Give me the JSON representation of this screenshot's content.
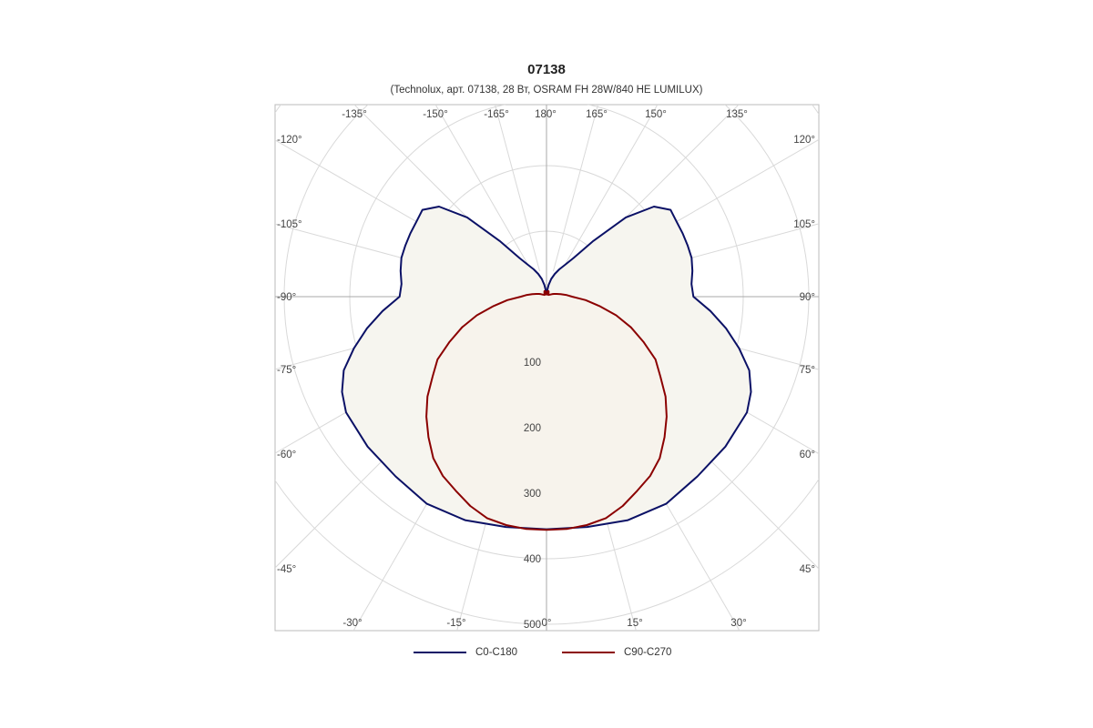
{
  "chart_data": {
    "type": "polar-line",
    "title": "07138",
    "subtitle": "(Technolux, арт. 07138, 28 Вт, OSRAM FH 28W/840 HE LUMILUX)",
    "radial_axis": {
      "ticks": [
        100,
        200,
        300,
        400,
        500
      ],
      "max": 500
    },
    "angle_labels": {
      "top": [
        "-135°",
        "-150°",
        "-165°",
        "180°",
        "165°",
        "150°",
        "135°"
      ],
      "left": [
        "-120°",
        "-105°",
        "-90°",
        "-75°",
        "-60°",
        "-45°"
      ],
      "right": [
        "120°",
        "105°",
        "90°",
        "75°",
        "60°",
        "45°"
      ],
      "bottom": [
        "-30°",
        "-15°",
        "0°",
        "15°",
        "30°"
      ]
    },
    "grid": true,
    "legend_position": "bottom",
    "series": [
      {
        "name": "C0-C180",
        "color": "#0b1166",
        "angles": [
          0,
          10,
          20,
          30,
          40,
          50,
          60,
          65,
          70,
          75,
          80,
          85,
          90,
          95,
          100,
          105,
          110,
          115,
          120,
          125,
          130,
          135,
          140,
          145,
          150,
          155,
          160,
          165,
          170,
          175,
          180
        ],
        "values": [
          355,
          357,
          363,
          365,
          358,
          356,
          353,
          344,
          329,
          304,
          278,
          251,
          224,
          222,
          226,
          229,
          229,
          229,
          229,
          231,
          214,
          171,
          111,
          72,
          56,
          46,
          37,
          28,
          18,
          8,
          5
        ]
      },
      {
        "name": "C90-C270",
        "color": "#8b0000",
        "angles": [
          0,
          5,
          10,
          15,
          20,
          25,
          30,
          35,
          40,
          45,
          50,
          55,
          60,
          65,
          70,
          75,
          80,
          85,
          90,
          95,
          100,
          105,
          110,
          115,
          120,
          125,
          130,
          135,
          140,
          145,
          150,
          155,
          160,
          165,
          170,
          175,
          180
        ],
        "values": [
          356,
          356,
          354,
          350,
          340,
          327,
          316,
          301,
          280,
          259,
          237,
          212,
          192,
          163,
          137,
          110,
          82,
          60,
          39,
          30,
          22,
          16,
          12,
          9,
          6,
          5,
          4,
          4,
          4,
          5,
          6,
          8,
          9,
          9,
          8,
          5,
          3
        ]
      }
    ]
  }
}
